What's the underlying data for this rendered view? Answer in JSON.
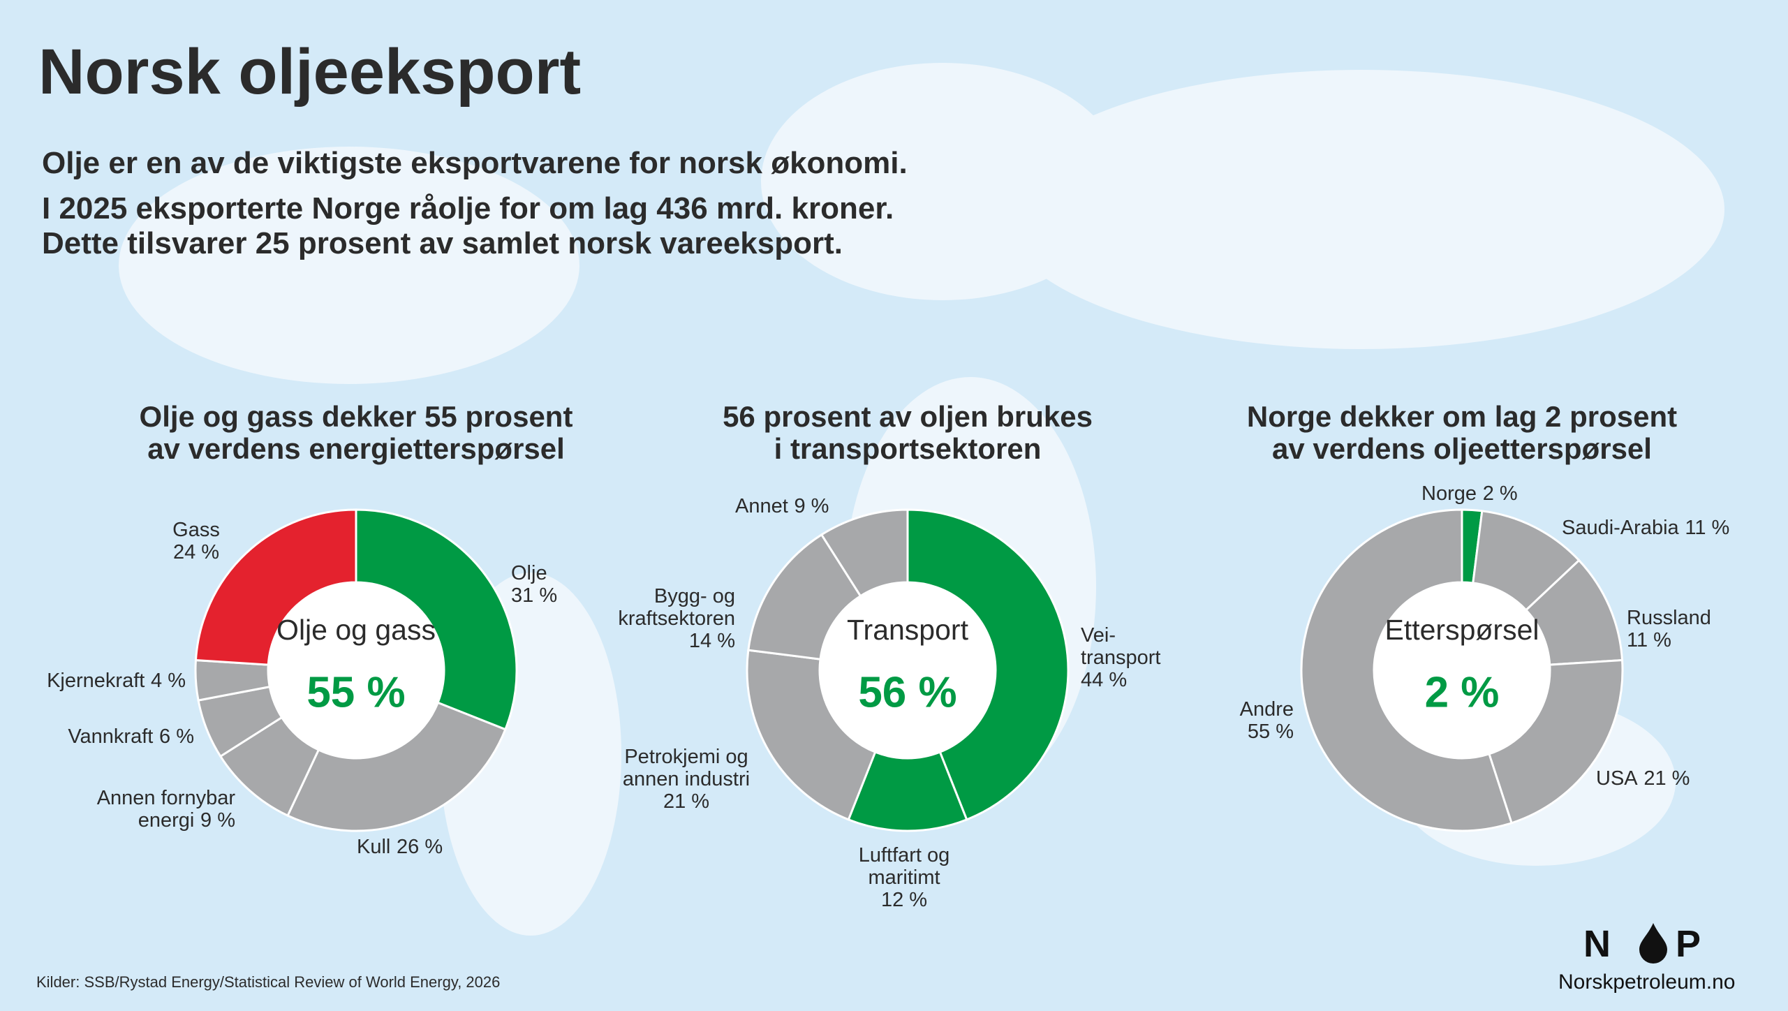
{
  "title": "Norsk oljeeksport",
  "subtitle": [
    "Olje er en av de viktigste eksportvarene for norsk økonomi.",
    "I 2025 eksporterte Norge råolje for om lag 436 mrd. kroner.",
    "Dette tilsvarer 25 prosent av samlet norsk vareeksport."
  ],
  "source": "Kilder: SSB/Rystad Energy/Statistical Review of World Energy, 2026",
  "logo": {
    "left": "N",
    "right": "P",
    "site": "Norskpetroleum.no"
  },
  "chart_data": [
    {
      "type": "donut",
      "title": [
        "Olje og gass dekker 55 prosent",
        "av verdens energietterspørsel"
      ],
      "center_label": "Olje og gass",
      "center_value": {
        "value": 55,
        "label": "55 %"
      },
      "categories": [
        "Olje",
        "Kull",
        "Annen fornybar\nenergi",
        "Vannkraft",
        "Kjernekraft",
        "Gass"
      ],
      "values": [
        31,
        26,
        9,
        6,
        4,
        24
      ],
      "value_labels": [
        "31 %",
        "26 %",
        "9 %",
        "6 %",
        "4 %",
        "24 %"
      ],
      "colors": [
        "#009a44",
        "#a7a8aa",
        "#a7a8aa",
        "#a7a8aa",
        "#a7a8aa",
        "#e4222e"
      ]
    },
    {
      "type": "donut",
      "title": [
        "56 prosent av oljen brukes",
        "i transportsektoren"
      ],
      "center_label": "Transport",
      "center_value": {
        "value": 56,
        "label": "56 %"
      },
      "categories": [
        "Vei-\ntransport",
        "Luftfart og\nmaritimt",
        "Petrokjemi og\nannen industri",
        "Bygg- og\nkraftsektoren",
        "Annet"
      ],
      "values": [
        44,
        12,
        21,
        14,
        9
      ],
      "value_labels": [
        "44 %",
        "12 %",
        "21 %",
        "14 %",
        "9 %"
      ],
      "colors": [
        "#009a44",
        "#009a44",
        "#a7a8aa",
        "#a7a8aa",
        "#a7a8aa"
      ]
    },
    {
      "type": "donut",
      "title": [
        "Norge dekker om lag 2 prosent",
        "av verdens oljeetterspørsel"
      ],
      "center_label": "Etterspørsel",
      "center_value": {
        "value": 2,
        "label": "2 %"
      },
      "categories": [
        "Norge",
        "Saudi-Arabia",
        "Russland",
        "USA",
        "Andre"
      ],
      "values": [
        2,
        11,
        11,
        21,
        55
      ],
      "value_labels": [
        "2 %",
        "11 %",
        "11 %",
        "21 %",
        "55 %"
      ],
      "colors": [
        "#009a44",
        "#a7a8aa",
        "#a7a8aa",
        "#a7a8aa",
        "#a7a8aa"
      ]
    }
  ]
}
